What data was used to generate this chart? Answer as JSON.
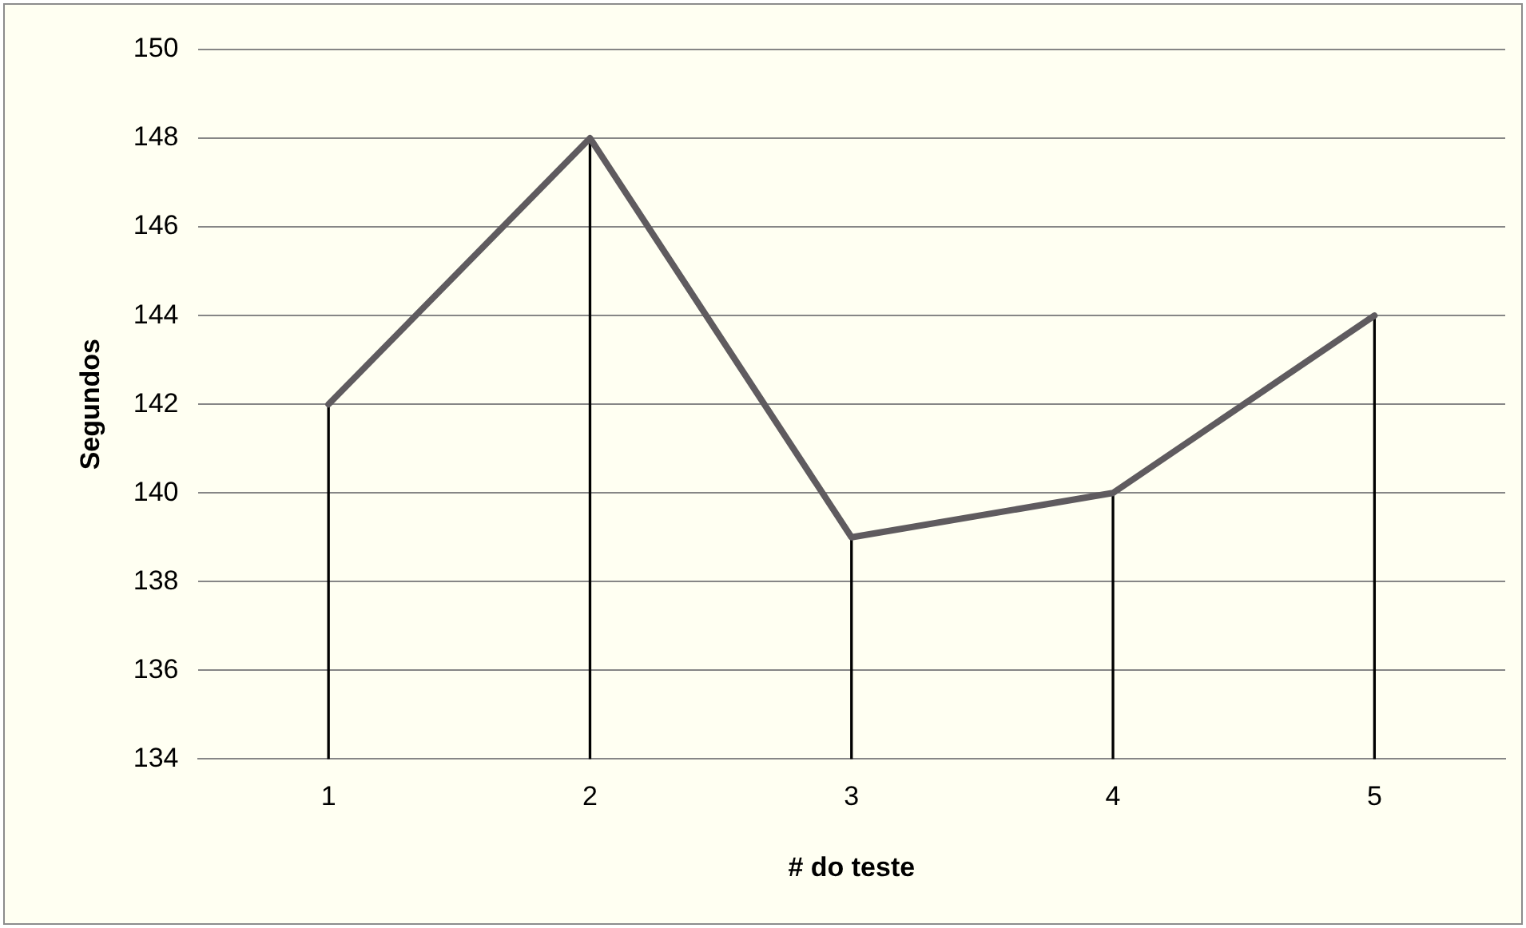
{
  "chart_data": {
    "type": "line",
    "xlabel": "# do teste",
    "ylabel": "Segundos",
    "categories": [
      "1",
      "2",
      "3",
      "4",
      "5"
    ],
    "series": [
      {
        "color": "#5f5b5f",
        "values": [
          142,
          148,
          139,
          140,
          144
        ]
      },
      {
        "type": "bar",
        "color": "#000000",
        "values": [
          142,
          148,
          139,
          140,
          144
        ]
      }
    ],
    "ylim": [
      134,
      150
    ],
    "yticks": [
      134,
      136,
      138,
      140,
      142,
      144,
      146,
      148,
      150
    ],
    "grid": "y",
    "legend": false,
    "marker": "none",
    "line_style": "solid"
  }
}
